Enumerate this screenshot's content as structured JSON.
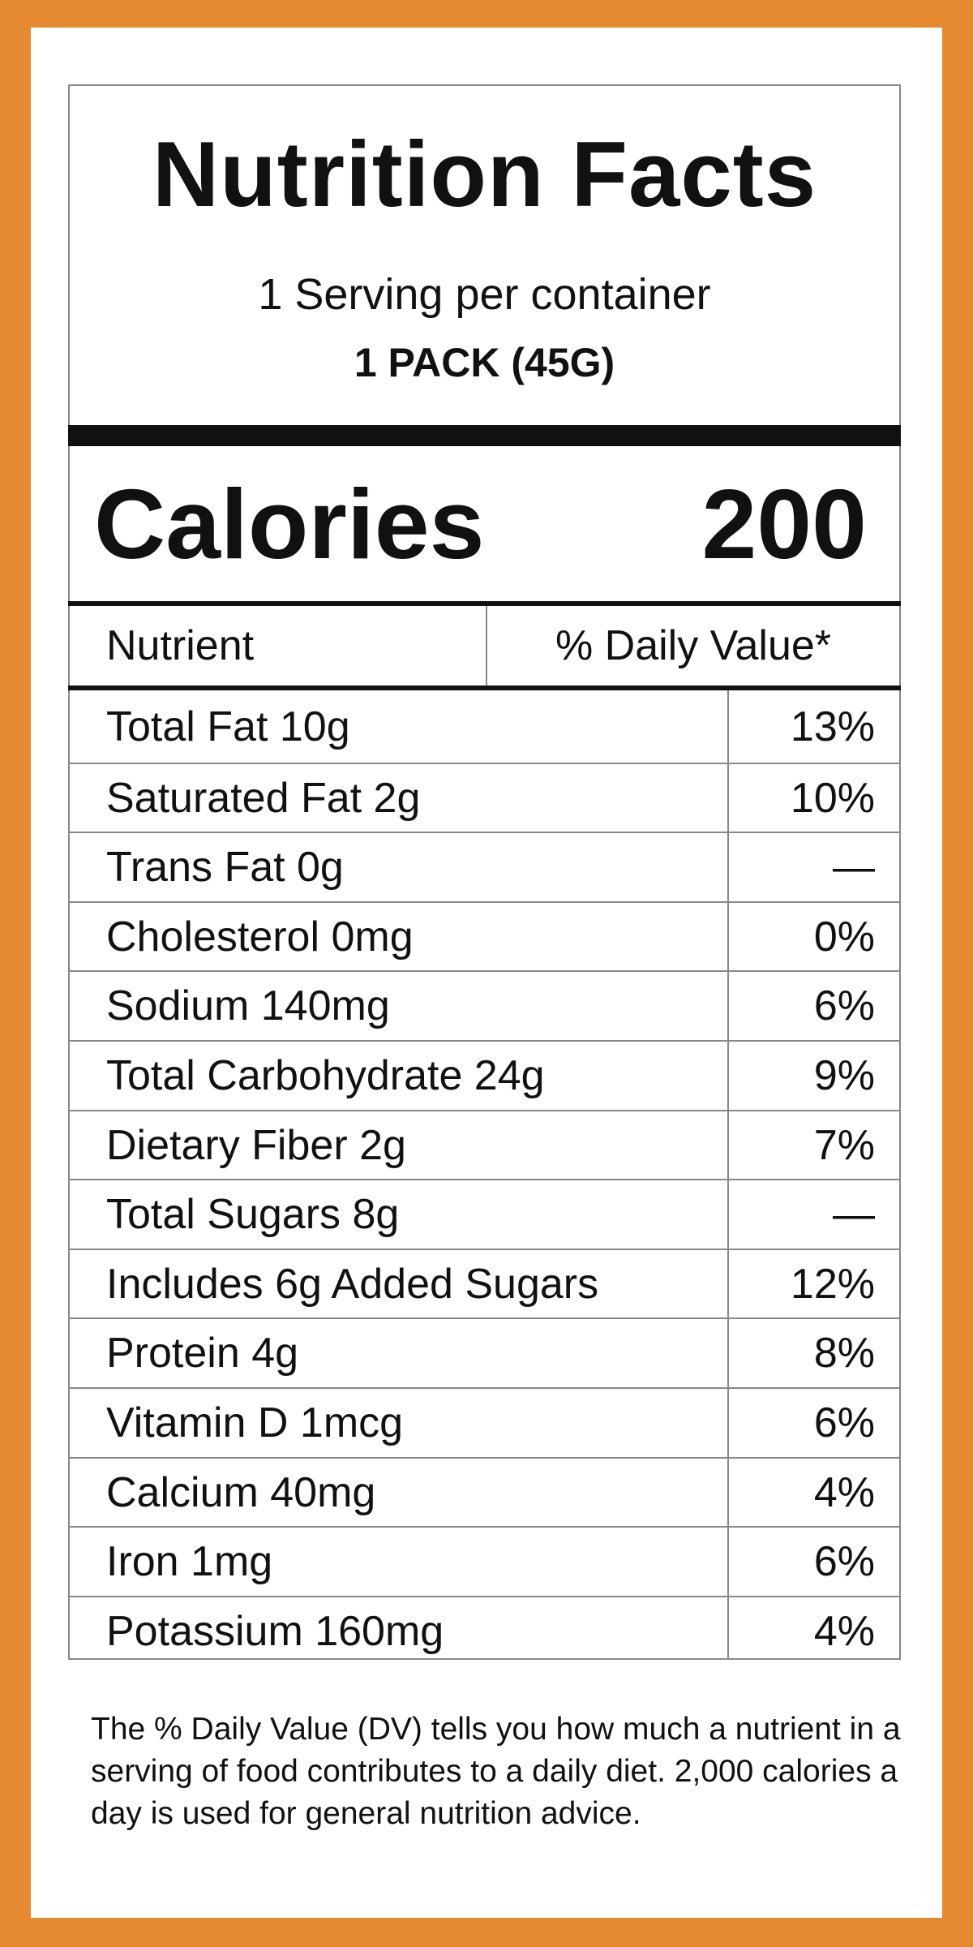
{
  "header": {
    "title": "Nutrition Facts",
    "servings": "1 Serving per container",
    "serving_size": "1 PACK (45G)"
  },
  "calories": {
    "label": "Calories",
    "value": 200
  },
  "table": {
    "columns": [
      "Nutrient",
      "% Daily Value*"
    ],
    "rows": [
      [
        "Total Fat 10g",
        "13%"
      ],
      [
        "Saturated Fat 2g",
        "10%"
      ],
      [
        "Trans Fat 0g",
        "—"
      ],
      [
        "Cholesterol 0mg",
        "0%"
      ],
      [
        "Sodium 140mg",
        "6%"
      ],
      [
        "Total Carbohydrate 24g",
        "9%"
      ],
      [
        "Dietary Fiber 2g",
        "7%"
      ],
      [
        "Total Sugars 8g",
        "—"
      ],
      [
        "Includes 6g Added Sugars",
        "12%"
      ],
      [
        "Protein 4g",
        "8%"
      ],
      [
        "Vitamin D 1mcg",
        "6%"
      ],
      [
        "Calcium 40mg",
        "4%"
      ],
      [
        "Iron 1mg",
        "6%"
      ],
      [
        "Potassium 160mg",
        "4%"
      ]
    ]
  },
  "footnote": "The % Daily Value (DV) tells you how much a nutrient in a serving of food contributes to a daily diet. 2,000 calories a day is used for general nutrition advice."
}
